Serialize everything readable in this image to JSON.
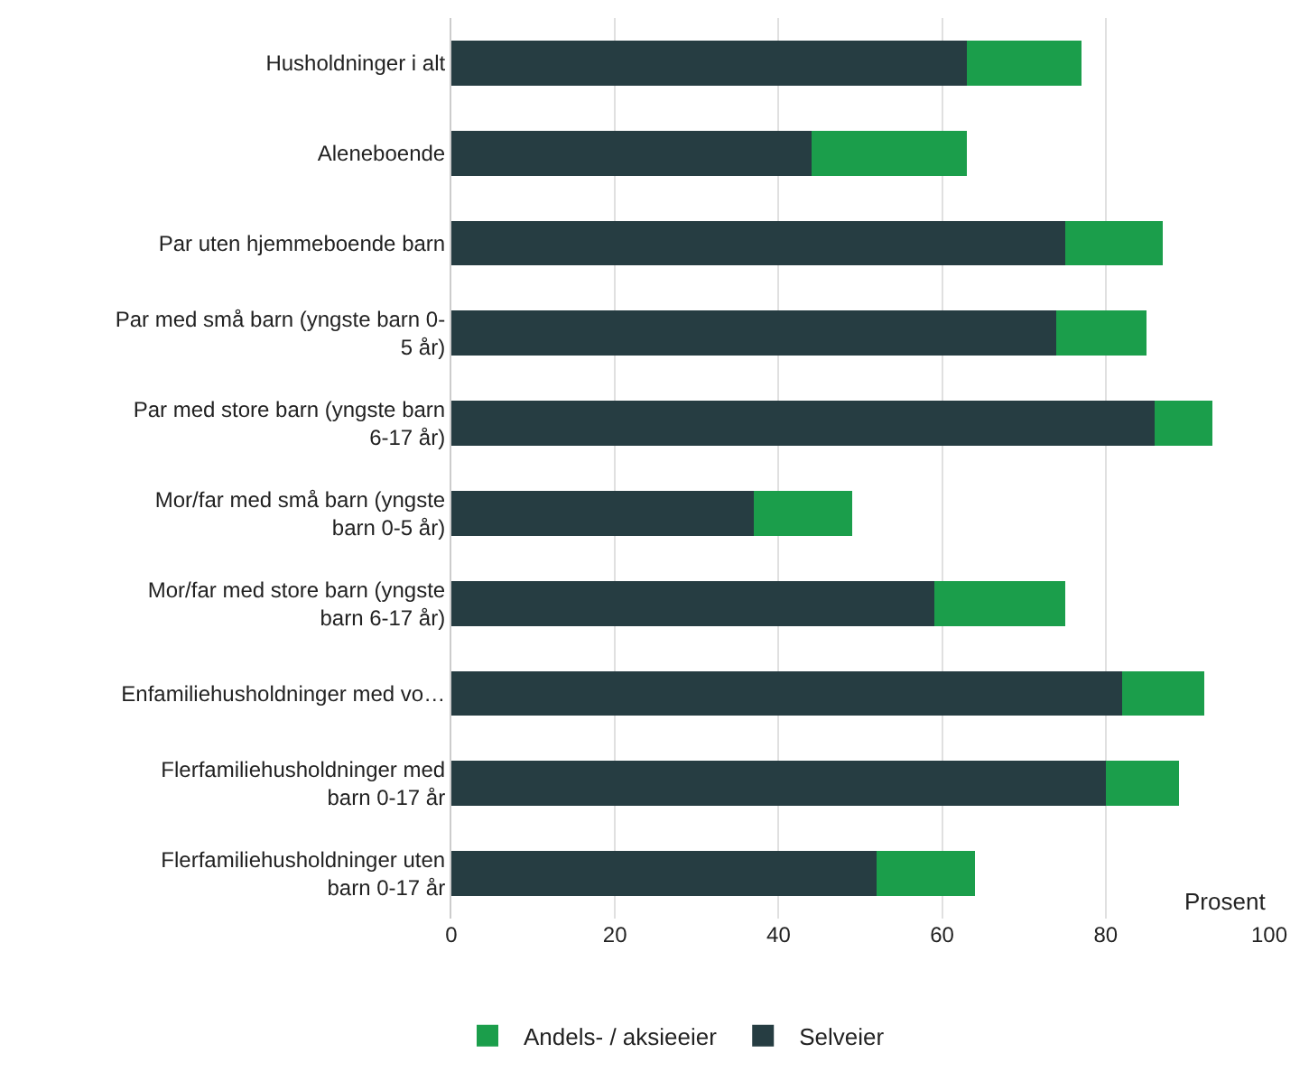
{
  "chart_data": {
    "type": "bar",
    "orientation": "horizontal",
    "stacked": true,
    "xlabel": "Prosent",
    "categories": [
      "Husholdninger i alt",
      "Aleneboende",
      "Par uten hjemmeboende barn",
      "Par med små barn (yngste barn 0-\n5 år)",
      "Par med store barn (yngste barn\n6-17 år)",
      "Mor/far med små barn (yngste\nbarn 0-5 år)",
      "Mor/far med store barn (yngste\nbarn 6-17 år)",
      "Enfamiliehusholdninger med vo…",
      "Flerfamiliehusholdninger med\nbarn 0-17 år",
      "Flerfamiliehusholdninger uten\nbarn 0-17 år"
    ],
    "series": [
      {
        "name": "Selveier",
        "color": "#263d42",
        "values": [
          63,
          44,
          75,
          74,
          86,
          37,
          59,
          82,
          80,
          52
        ]
      },
      {
        "name": "Andels- / aksieeier",
        "color": "#1b9e4b",
        "values": [
          14,
          19,
          12,
          11,
          7,
          12,
          16,
          10,
          9,
          12
        ]
      }
    ],
    "xlim": [
      0,
      100
    ],
    "xticks": [
      0,
      20,
      40,
      60,
      80,
      100
    ],
    "grid": "x",
    "legend": "bottom"
  }
}
